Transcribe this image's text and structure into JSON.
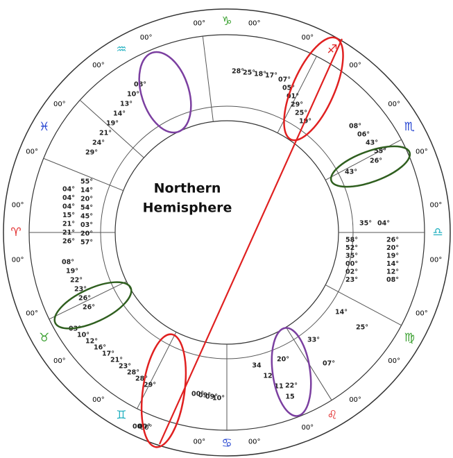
{
  "ring": [
    {
      "glyph": "♈",
      "deg_before": "00°",
      "deg_after": "00°"
    },
    {
      "glyph": "♉",
      "deg_before": "00°",
      "deg_after": "00°"
    },
    {
      "glyph": "♊",
      "deg_before": "00°",
      "deg_after": "00°"
    },
    {
      "glyph": "♋",
      "deg_before": "00°",
      "deg_after": "00°"
    },
    {
      "glyph": "♌",
      "deg_before": "00°",
      "deg_after": "00°"
    },
    {
      "glyph": "♍",
      "deg_before": "00°",
      "deg_after": "00°"
    },
    {
      "glyph": "♎",
      "deg_before": "00°",
      "deg_after": "00°"
    },
    {
      "glyph": "♏",
      "deg_before": "00°",
      "deg_after": "00°"
    },
    {
      "glyph": "♐",
      "deg_before": "00°",
      "deg_after": "00°"
    },
    {
      "glyph": "♑",
      "deg_before": "00°",
      "deg_after": "00°"
    },
    {
      "glyph": "♒",
      "deg_before": "00°",
      "deg_after": "00°"
    },
    {
      "glyph": "♓",
      "deg_before": "00°",
      "deg_after": "00°"
    }
  ],
  "center": {
    "line1": "Northern",
    "line2": "Hemisphere"
  },
  "clusters": [
    {
      "labels": [
        "35°",
        "04°"
      ]
    },
    {
      "labels": [
        "58°",
        "52°",
        "35°",
        "00°",
        "02°",
        "23°"
      ]
    },
    {
      "labels": [
        "26°",
        "20°",
        "19°",
        "14°",
        "12°",
        "08°"
      ]
    },
    {
      "labels": [
        "14°",
        "25°"
      ]
    },
    {
      "labels": [
        "33°",
        "07°"
      ]
    },
    {
      "labels": [
        "20°",
        "22°"
      ]
    },
    {
      "labels": [
        "34",
        "12",
        "11",
        "15"
      ]
    },
    {
      "labels": [
        "43°",
        "26°"
      ]
    },
    {
      "labels": [
        "08°",
        "06°",
        "43°",
        "55°"
      ]
    },
    {
      "labels": [
        "07°",
        "05°",
        "01°",
        "29°",
        "25°",
        "19°"
      ]
    },
    {
      "labels": [
        "28°",
        "25°",
        "18°",
        "17°"
      ]
    },
    {
      "labels": [
        "04°",
        "04°",
        "04°",
        "15°",
        "21°",
        "21°",
        "26°"
      ]
    },
    {
      "labels": [
        "55°",
        "14°",
        "20°",
        "54°",
        "45°",
        "03°",
        "20°",
        "57°"
      ]
    },
    {
      "labels": [
        "08°",
        "19°",
        "22°",
        "23°",
        "26°",
        "26°"
      ]
    },
    {
      "labels": [
        "03°",
        "10°",
        "12°",
        "16°",
        "17°",
        "21°",
        "23°",
        "28°",
        "28°",
        "29°"
      ]
    },
    {
      "labels": [
        "29°",
        "24°",
        "21°",
        "19°",
        "14°",
        "13°",
        "10°",
        "08°"
      ]
    },
    {
      "labels": [
        "00°",
        "09°",
        "09°",
        "10°"
      ]
    },
    {
      "labels": [
        "00°",
        "00°"
      ]
    }
  ]
}
